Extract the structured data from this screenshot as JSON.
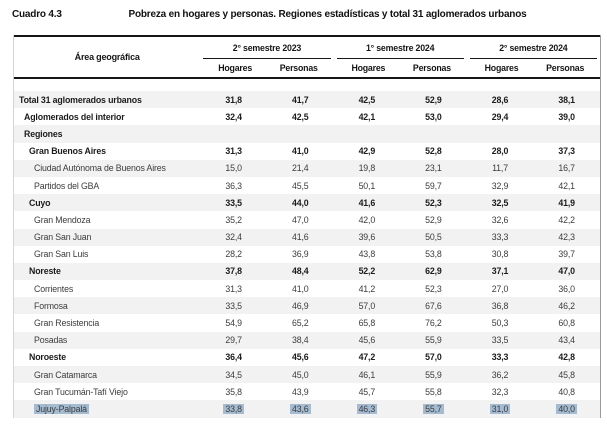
{
  "caption": {
    "label": "Cuadro 4.3",
    "title": "Pobreza en hogares y personas. Regiones estadísticas y total 31 aglomerados urbanos"
  },
  "table": {
    "area_header": "Área geográfica",
    "groups": [
      {
        "label": "2° semestre 2023",
        "sub": [
          "Hogares",
          "Personas"
        ]
      },
      {
        "label": "1° semestre 2024",
        "sub": [
          "Hogares",
          "Personas"
        ]
      },
      {
        "label": "2° semestre 2024",
        "sub": [
          "Hogares",
          "Personas"
        ]
      }
    ],
    "rows": [
      {
        "label": "Total 31 aglomerados urbanos",
        "bold": true,
        "indent": 0,
        "selected": false,
        "values": [
          "31,8",
          "41,7",
          "42,5",
          "52,9",
          "28,6",
          "38,1"
        ]
      },
      {
        "label": "Aglomerados del interior",
        "bold": true,
        "indent": 1,
        "selected": false,
        "values": [
          "32,4",
          "42,5",
          "42,1",
          "53,0",
          "29,4",
          "39,0"
        ]
      },
      {
        "label": "Regiones",
        "bold": true,
        "indent": 1,
        "selected": false,
        "values": [
          "",
          "",
          "",
          "",
          "",
          ""
        ]
      },
      {
        "label": "Gran Buenos Aires",
        "bold": true,
        "indent": 2,
        "selected": false,
        "values": [
          "31,3",
          "41,0",
          "42,9",
          "52,8",
          "28,0",
          "37,3"
        ]
      },
      {
        "label": "Ciudad Autónoma de Buenos Aires",
        "bold": false,
        "indent": 3,
        "selected": false,
        "values": [
          "15,0",
          "21,4",
          "19,8",
          "23,1",
          "11,7",
          "16,7"
        ]
      },
      {
        "label": "Partidos del GBA",
        "bold": false,
        "indent": 3,
        "selected": false,
        "values": [
          "36,3",
          "45,5",
          "50,1",
          "59,7",
          "32,9",
          "42,1"
        ]
      },
      {
        "label": "Cuyo",
        "bold": true,
        "indent": 2,
        "selected": false,
        "values": [
          "33,5",
          "44,0",
          "41,6",
          "52,3",
          "32,5",
          "41,9"
        ]
      },
      {
        "label": "Gran Mendoza",
        "bold": false,
        "indent": 3,
        "selected": false,
        "values": [
          "35,2",
          "47,0",
          "42,0",
          "52,9",
          "32,6",
          "42,2"
        ]
      },
      {
        "label": "Gran San Juan",
        "bold": false,
        "indent": 3,
        "selected": false,
        "values": [
          "32,4",
          "41,6",
          "39,6",
          "50,5",
          "33,3",
          "42,3"
        ]
      },
      {
        "label": "Gran San Luis",
        "bold": false,
        "indent": 3,
        "selected": false,
        "values": [
          "28,2",
          "36,9",
          "43,8",
          "53,8",
          "30,8",
          "39,7"
        ]
      },
      {
        "label": "Noreste",
        "bold": true,
        "indent": 2,
        "selected": false,
        "values": [
          "37,8",
          "48,4",
          "52,2",
          "62,9",
          "37,1",
          "47,0"
        ]
      },
      {
        "label": "Corrientes",
        "bold": false,
        "indent": 3,
        "selected": false,
        "values": [
          "31,3",
          "41,0",
          "41,2",
          "52,3",
          "27,0",
          "36,0"
        ]
      },
      {
        "label": "Formosa",
        "bold": false,
        "indent": 3,
        "selected": false,
        "values": [
          "33,5",
          "46,9",
          "57,0",
          "67,6",
          "36,8",
          "46,2"
        ]
      },
      {
        "label": "Gran Resistencia",
        "bold": false,
        "indent": 3,
        "selected": false,
        "values": [
          "54,9",
          "65,2",
          "65,8",
          "76,2",
          "50,3",
          "60,8"
        ]
      },
      {
        "label": "Posadas",
        "bold": false,
        "indent": 3,
        "selected": false,
        "values": [
          "29,7",
          "38,4",
          "45,6",
          "55,9",
          "33,5",
          "43,4"
        ]
      },
      {
        "label": "Noroeste",
        "bold": true,
        "indent": 2,
        "selected": false,
        "values": [
          "36,4",
          "45,6",
          "47,2",
          "57,0",
          "33,3",
          "42,8"
        ]
      },
      {
        "label": "Gran Catamarca",
        "bold": false,
        "indent": 3,
        "selected": false,
        "values": [
          "34,5",
          "45,0",
          "46,1",
          "55,9",
          "36,2",
          "45,8"
        ]
      },
      {
        "label": "Gran Tucumán-Tafí Viejo",
        "bold": false,
        "indent": 3,
        "selected": false,
        "values": [
          "35,8",
          "43,9",
          "45,7",
          "55,8",
          "32,3",
          "40,8"
        ]
      },
      {
        "label": "Jujuy-Palpalá",
        "bold": false,
        "indent": 3,
        "selected": true,
        "values": [
          "33,8",
          "43,6",
          "46,3",
          "55,7",
          "31,0",
          "40,0"
        ]
      }
    ]
  },
  "colors": {
    "stripe": "#f2f2f2",
    "selection": "#a4bcd1",
    "rule": "#161616",
    "text": "#3c3c3c",
    "bold_text": "#1c1c1c"
  }
}
